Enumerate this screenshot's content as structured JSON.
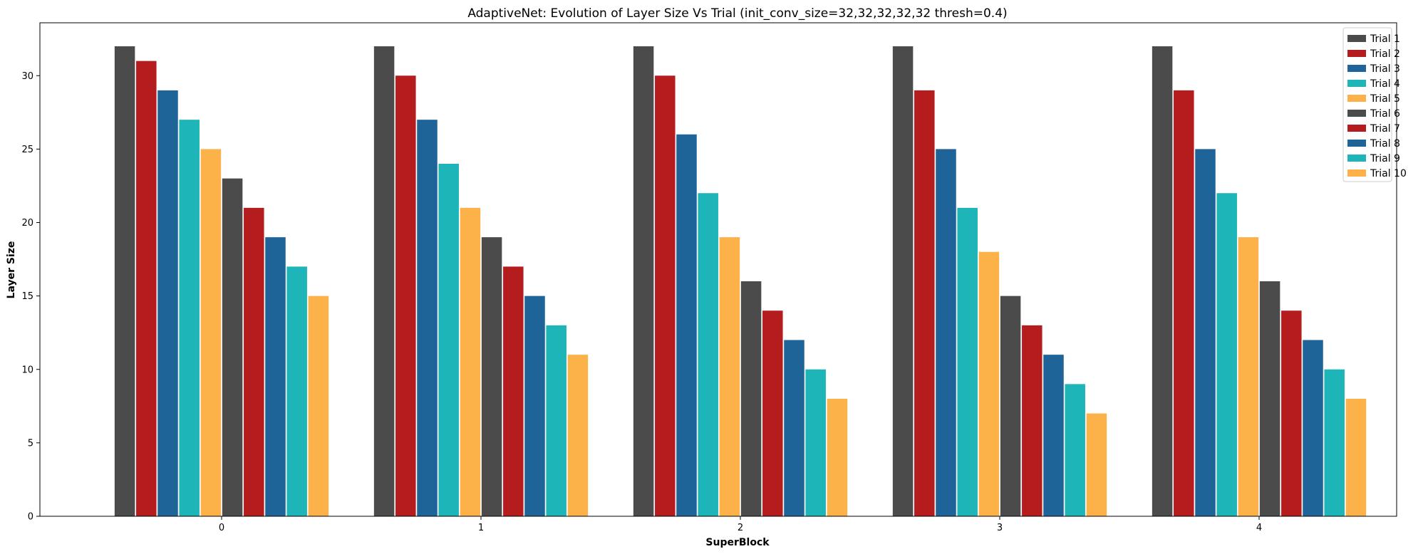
{
  "chart_data": {
    "type": "bar",
    "title": "AdaptiveNet: Evolution of Layer Size Vs Trial (init_conv_size=32,32,32,32,32 thresh=0.4)",
    "xlabel": "SuperBlock",
    "ylabel": "Layer Size",
    "categories": [
      "0",
      "1",
      "2",
      "3",
      "4"
    ],
    "ylim": [
      0,
      33.6
    ],
    "yticks": [
      0,
      5,
      10,
      15,
      20,
      25,
      30
    ],
    "grid": false,
    "legend_position": "top-right",
    "series": [
      {
        "name": "Trial 1",
        "color": "#4b4b4b",
        "values": [
          32,
          32,
          32,
          32,
          32
        ]
      },
      {
        "name": "Trial 2",
        "color": "#b41c1e",
        "values": [
          31,
          30,
          30,
          29,
          29
        ]
      },
      {
        "name": "Trial 3",
        "color": "#1f6499",
        "values": [
          29,
          27,
          26,
          25,
          25
        ]
      },
      {
        "name": "Trial 4",
        "color": "#1db5b8",
        "values": [
          27,
          24,
          22,
          21,
          22
        ]
      },
      {
        "name": "Trial 5",
        "color": "#fdb149",
        "values": [
          25,
          21,
          19,
          18,
          19
        ]
      },
      {
        "name": "Trial 6",
        "color": "#4b4b4b",
        "values": [
          23,
          19,
          16,
          15,
          16
        ]
      },
      {
        "name": "Trial 7",
        "color": "#b41c1e",
        "values": [
          21,
          17,
          14,
          13,
          14
        ]
      },
      {
        "name": "Trial 8",
        "color": "#1f6499",
        "values": [
          19,
          15,
          12,
          11,
          12
        ]
      },
      {
        "name": "Trial 9",
        "color": "#1db5b8",
        "values": [
          17,
          13,
          10,
          9,
          10
        ]
      },
      {
        "name": "Trial 10",
        "color": "#fdb149",
        "values": [
          15,
          11,
          8,
          7,
          8
        ]
      }
    ]
  }
}
